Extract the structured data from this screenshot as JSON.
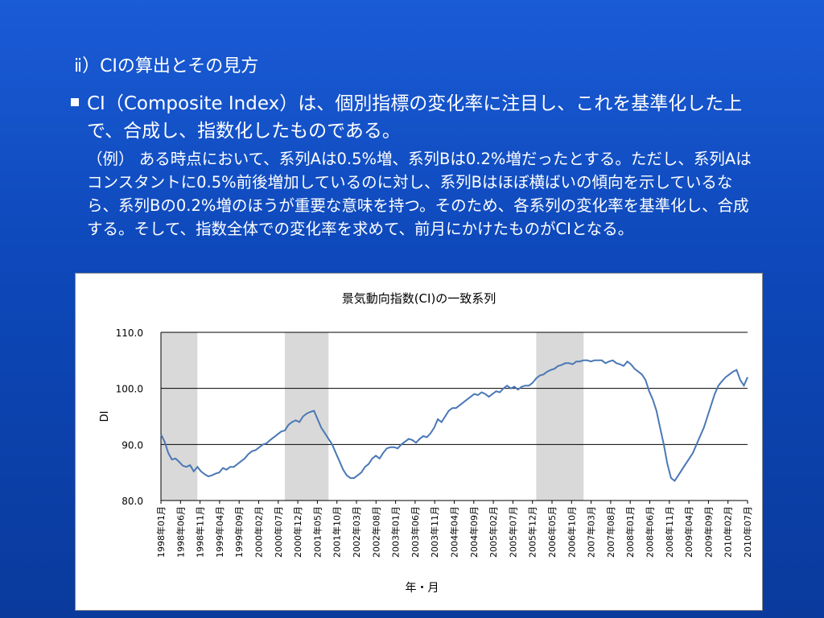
{
  "slide": {
    "heading": "ⅱ）CIの算出とその見方",
    "bullet_text": "CI（Composite Index）は、個別指標の変化率に注目し、これを基準化した上で、合成し、指数化したものである。",
    "example_text": "（例） ある時点において、系列Aは0.5%増、系列Bは0.2%増だったとする。ただし、系列Aはコンスタントに0.5%前後増加しているのに対し、系列Bはほぼ横ばいの傾向を示しているなら、系列Bの0.2%増のほうが重要な意味を持つ。そのため、各系列の変化率を基準化し、合成する。そして、指数全体での変化率を求めて、前月にかけたものがCIとなる。"
  },
  "chart_data": {
    "type": "line",
    "title": "景気動向指数(CI)の一致系列",
    "ylabel": "DI",
    "xlabel": "年・月",
    "ylim": [
      80,
      110
    ],
    "yticks": [
      "80.0",
      "90.0",
      "100.0",
      "110.0"
    ],
    "xticks": [
      "1998年01月",
      "1998年06月",
      "1998年11月",
      "1999年04月",
      "1999年09月",
      "2000年02月",
      "2000年07月",
      "2000年12月",
      "2001年05月",
      "2001年10月",
      "2002年03月",
      "2002年08月",
      "2003年01月",
      "2003年06月",
      "2003年11月",
      "2004年04月",
      "2004年09月",
      "2005年02月",
      "2005年07月",
      "2005年12月",
      "2006年05月",
      "2006年10月",
      "2007年03月",
      "2007年08月",
      "2008年01月",
      "2008年06月",
      "2008年11月",
      "2009年04月",
      "2009年09月",
      "2010年02月",
      "2010年07月"
    ],
    "recessions": [
      [
        0,
        10
      ],
      [
        34,
        46
      ],
      [
        103,
        116
      ]
    ],
    "series": [
      {
        "values": [
          91.8,
          90.5,
          88.5,
          87.3,
          87.5,
          86.9,
          86.2,
          86.0,
          86.3,
          85.2,
          86.0,
          85.2,
          84.7,
          84.3,
          84.5,
          84.8,
          85.0,
          85.8,
          85.5,
          86.0,
          86.0,
          86.5,
          87.0,
          87.5,
          88.3,
          88.8,
          89.0,
          89.5,
          90.0,
          90.2,
          90.8,
          91.3,
          91.8,
          92.3,
          92.5,
          93.5,
          94.0,
          94.3,
          94.0,
          95.0,
          95.5,
          95.8,
          96.0,
          94.5,
          93.0,
          92.0,
          91.0,
          90.0,
          88.5,
          87.0,
          85.5,
          84.5,
          84.0,
          84.0,
          84.5,
          85.0,
          86.0,
          86.5,
          87.5,
          88.0,
          87.5,
          88.5,
          89.3,
          89.5,
          89.5,
          89.3,
          90.0,
          90.5,
          91.0,
          90.8,
          90.3,
          91.0,
          91.5,
          91.3,
          92.0,
          93.0,
          94.5,
          94.0,
          95.0,
          96.0,
          96.5,
          96.5,
          97.0,
          97.5,
          98.0,
          98.5,
          99.0,
          98.8,
          99.3,
          99.0,
          98.5,
          99.0,
          99.5,
          99.3,
          100.0,
          100.5,
          100.0,
          100.3,
          99.8,
          100.3,
          100.5,
          100.5,
          101.0,
          101.8,
          102.3,
          102.5,
          103.0,
          103.3,
          103.5,
          104.0,
          104.2,
          104.5,
          104.5,
          104.3,
          104.8,
          104.8,
          105.0,
          105.0,
          104.8,
          105.0,
          105.0,
          105.0,
          104.5,
          104.8,
          105.0,
          104.5,
          104.3,
          104.0,
          104.8,
          104.3,
          103.5,
          103.0,
          102.5,
          101.5,
          99.5,
          98.0,
          96.0,
          93.0,
          90.0,
          86.5,
          84.0,
          83.5,
          84.5,
          85.5,
          86.5,
          87.5,
          88.5,
          90.0,
          91.5,
          93.0,
          95.0,
          97.0,
          99.0,
          100.5,
          101.3,
          102.0,
          102.5,
          103.0,
          103.3,
          101.5,
          100.5,
          102.0
        ]
      }
    ]
  }
}
